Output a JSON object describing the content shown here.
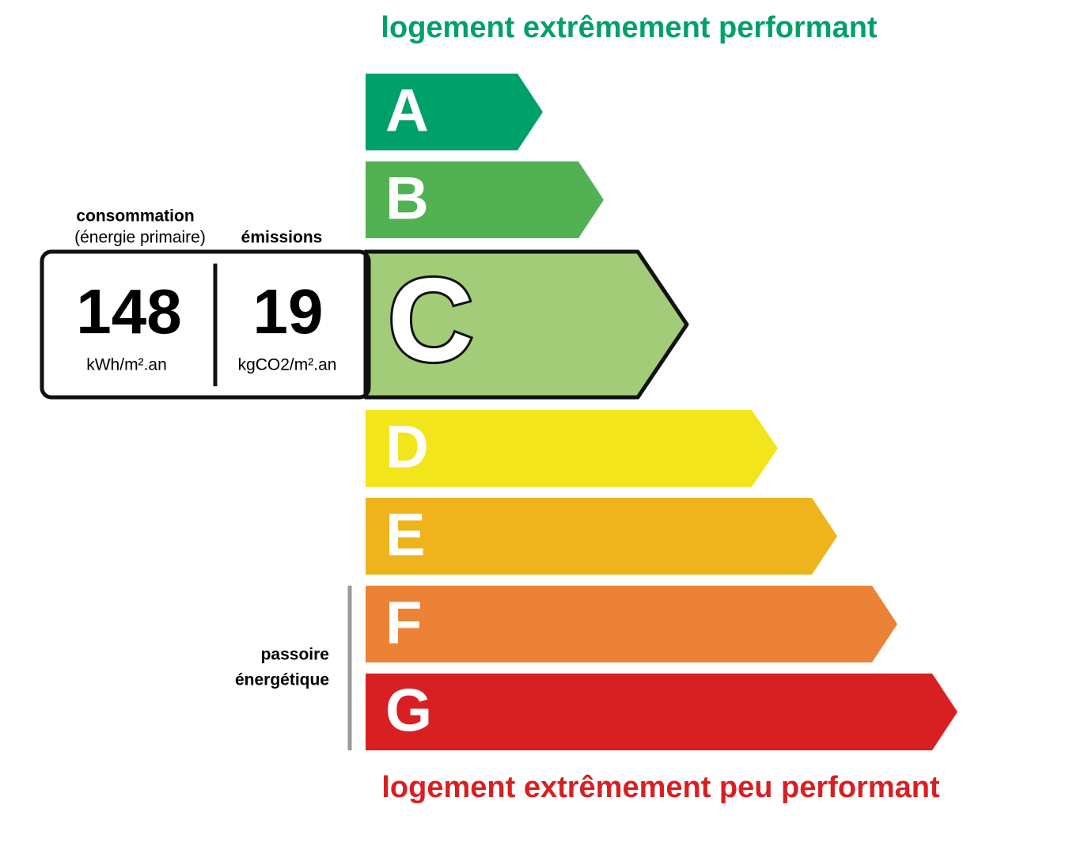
{
  "header": {
    "title": "logement extrêmement performant"
  },
  "footer": {
    "title": "logement extrêmement peu performant"
  },
  "classes": [
    {
      "letter": "A",
      "color": "#00a06b"
    },
    {
      "letter": "B",
      "color": "#52b153"
    },
    {
      "letter": "C",
      "color": "#a3cc78"
    },
    {
      "letter": "D",
      "color": "#f2e51c"
    },
    {
      "letter": "E",
      "color": "#efb41b"
    },
    {
      "letter": "F",
      "color": "#eb8235"
    },
    {
      "letter": "G",
      "color": "#d81f22"
    }
  ],
  "consumption": {
    "label": "consommation",
    "sublabel": "(énergie primaire)",
    "value": 148,
    "unit": "kWh/m².an"
  },
  "emissions": {
    "label": "émissions",
    "value": 19,
    "unit": "kgCO2/m².an"
  },
  "passoire": {
    "lines": [
      "passoire",
      "énergétique"
    ]
  }
}
